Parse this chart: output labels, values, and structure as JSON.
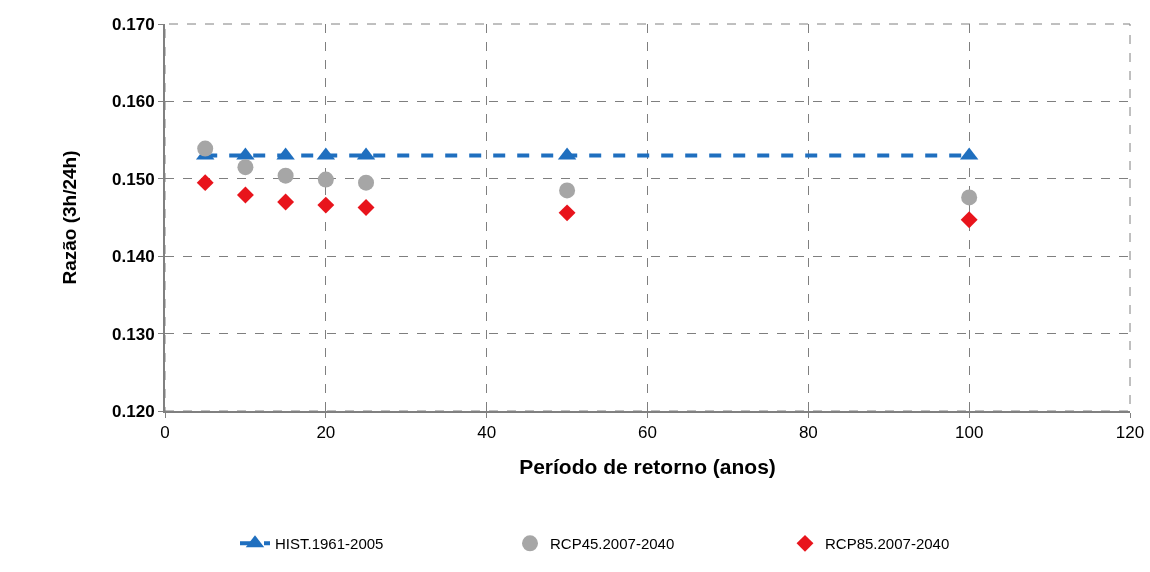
{
  "chart_data": {
    "type": "line",
    "xlabel": "Período de retorno (anos)",
    "ylabel": "Razão (3h/24h)",
    "xlim": [
      0,
      120
    ],
    "xticks": [
      0,
      20,
      40,
      60,
      80,
      100,
      120
    ],
    "ylim": [
      0.12,
      0.17
    ],
    "yticks": [
      {
        "value": 0.12,
        "label": "0.120"
      },
      {
        "value": 0.13,
        "label": "0.130"
      },
      {
        "value": 0.14,
        "label": "0.140"
      },
      {
        "value": 0.15,
        "label": "0.150"
      },
      {
        "value": 0.16,
        "label": "0.160"
      },
      {
        "value": 0.17,
        "label": "0.170"
      }
    ],
    "x": [
      5,
      10,
      15,
      20,
      25,
      50,
      100
    ],
    "grid": true,
    "legend": "bottom",
    "series": [
      {
        "name": "HIST.1961-2005",
        "color": "#1f6fbf",
        "marker": "triangle",
        "line_style": "dashed",
        "values": [
          0.153,
          0.153,
          0.153,
          0.153,
          0.153,
          0.153,
          0.153
        ]
      },
      {
        "name": "RCP45.2007-2040",
        "type": "scatter",
        "color": "#a6a6a6",
        "marker": "circle",
        "values": [
          0.1539,
          0.1515,
          0.1504,
          0.1499,
          0.1495,
          0.1485,
          0.1476
        ]
      },
      {
        "name": "RCP85.2007-2040",
        "type": "scatter",
        "color": "#e8141c",
        "marker": "diamond",
        "values": [
          0.1495,
          0.1479,
          0.147,
          0.1466,
          0.1463,
          0.1456,
          0.1447
        ]
      }
    ]
  }
}
